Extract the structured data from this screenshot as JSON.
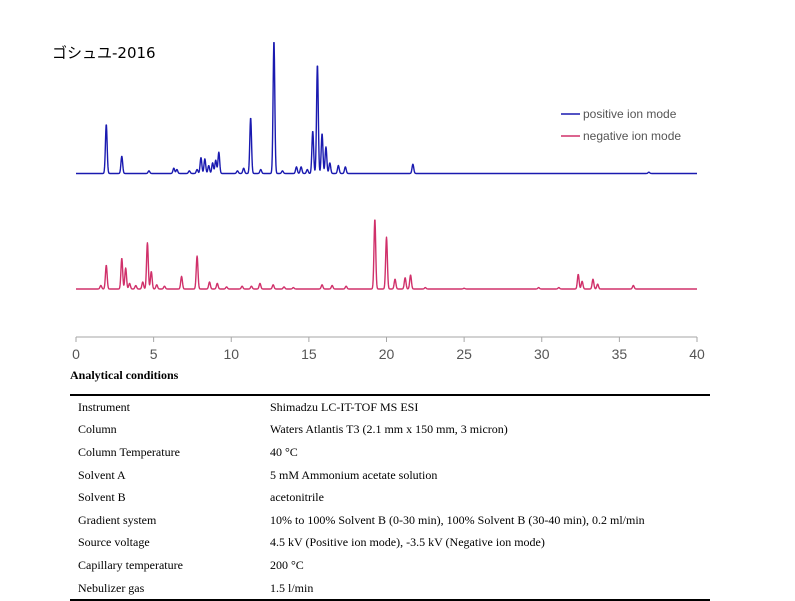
{
  "title": "ゴシュユ-2016",
  "colors": {
    "positive": "#1a1ab0",
    "negative": "#d0306a"
  },
  "chart_data": {
    "type": "line",
    "title": "ゴシュユ-2016",
    "xlabel": "",
    "ylabel": "",
    "xlim": [
      0,
      40
    ],
    "xticks": [
      0,
      5,
      10,
      15,
      20,
      25,
      30,
      35,
      40
    ],
    "grid": false,
    "legend_position": "top-right",
    "series": [
      {
        "name": "positive ion mode",
        "color": "#1a1ab0",
        "peaks": [
          [
            1.95,
            0.37
          ],
          [
            2.95,
            0.13
          ],
          [
            4.7,
            0.02
          ],
          [
            6.3,
            0.04
          ],
          [
            6.5,
            0.03
          ],
          [
            7.3,
            0.02
          ],
          [
            7.8,
            0.03
          ],
          [
            8.05,
            0.12
          ],
          [
            8.3,
            0.11
          ],
          [
            8.55,
            0.06
          ],
          [
            8.8,
            0.08
          ],
          [
            9.0,
            0.1
          ],
          [
            9.2,
            0.16
          ],
          [
            10.4,
            0.02
          ],
          [
            10.8,
            0.04
          ],
          [
            11.25,
            0.42
          ],
          [
            11.9,
            0.03
          ],
          [
            12.75,
            1.0
          ],
          [
            13.3,
            0.02
          ],
          [
            14.2,
            0.05
          ],
          [
            14.5,
            0.05
          ],
          [
            14.9,
            0.03
          ],
          [
            15.25,
            0.32
          ],
          [
            15.55,
            0.82
          ],
          [
            15.85,
            0.3
          ],
          [
            16.1,
            0.2
          ],
          [
            16.35,
            0.08
          ],
          [
            16.9,
            0.06
          ],
          [
            17.35,
            0.05
          ],
          [
            21.7,
            0.07
          ],
          [
            36.9,
            0.01
          ]
        ]
      },
      {
        "name": "negative ion mode",
        "color": "#d0306a",
        "peaks": [
          [
            1.6,
            0.05
          ],
          [
            1.95,
            0.34
          ],
          [
            2.95,
            0.44
          ],
          [
            3.2,
            0.3
          ],
          [
            3.45,
            0.08
          ],
          [
            3.85,
            0.05
          ],
          [
            4.3,
            0.1
          ],
          [
            4.6,
            0.66
          ],
          [
            4.85,
            0.25
          ],
          [
            5.2,
            0.06
          ],
          [
            5.7,
            0.04
          ],
          [
            6.8,
            0.18
          ],
          [
            7.8,
            0.47
          ],
          [
            8.6,
            0.1
          ],
          [
            9.1,
            0.08
          ],
          [
            9.7,
            0.03
          ],
          [
            10.7,
            0.04
          ],
          [
            11.3,
            0.04
          ],
          [
            11.85,
            0.08
          ],
          [
            12.7,
            0.06
          ],
          [
            13.4,
            0.03
          ],
          [
            14.0,
            0.02
          ],
          [
            15.85,
            0.06
          ],
          [
            16.5,
            0.05
          ],
          [
            17.4,
            0.04
          ],
          [
            19.25,
            1.0
          ],
          [
            20.0,
            0.74
          ],
          [
            20.55,
            0.14
          ],
          [
            21.2,
            0.16
          ],
          [
            21.55,
            0.2
          ],
          [
            22.5,
            0.02
          ],
          [
            25.0,
            0.01
          ],
          [
            29.8,
            0.02
          ],
          [
            31.1,
            0.02
          ],
          [
            32.35,
            0.21
          ],
          [
            32.6,
            0.11
          ],
          [
            33.3,
            0.14
          ],
          [
            33.6,
            0.07
          ],
          [
            35.9,
            0.05
          ]
        ]
      }
    ]
  },
  "conditions": {
    "heading": "Analytical conditions",
    "rows": [
      {
        "label": "Instrument",
        "value": "Shimadzu LC-IT-TOF MS ESI"
      },
      {
        "label": "Column",
        "value": "Waters Atlantis T3 (2.1 mm x 150 mm, 3 micron)"
      },
      {
        "label": "Column Temperature",
        "value": "40 °C"
      },
      {
        "label": "Solvent A",
        "value": "5 mM Ammonium acetate solution"
      },
      {
        "label": "Solvent B",
        "value": "acetonitrile"
      },
      {
        "label": "Gradient system",
        "value": "10% to 100% Solvent B (0-30 min), 100% Solvent B (30-40 min), 0.2 ml/min"
      },
      {
        "label": "Source voltage",
        "value": "4.5 kV (Positive ion mode), -3.5 kV (Negative ion mode)"
      },
      {
        "label": "Capillary temperature",
        "value": "200 °C"
      },
      {
        "label": "Nebulizer gas",
        "value": "1.5 l/min"
      }
    ]
  }
}
